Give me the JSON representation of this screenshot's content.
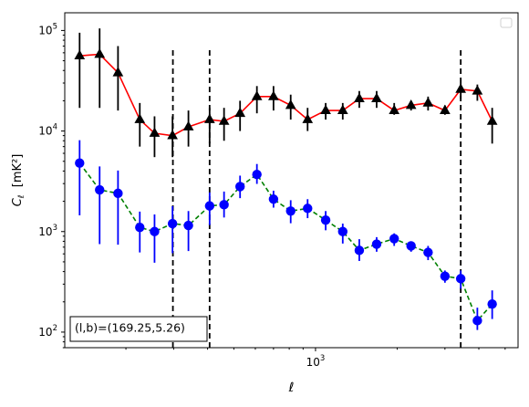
{
  "chart_data": {
    "type": "scatter",
    "title": "",
    "xlabel": "ℓ",
    "ylabel_main": "C",
    "ylabel_sub": "ℓ",
    "ylabel_unit": "[mK²]",
    "xscale": "log",
    "yscale": "log",
    "xlim": [
      119,
      5580
    ],
    "ylim": [
      70,
      150000
    ],
    "x_major_ticks": [
      {
        "value": 1000,
        "base": "10",
        "exp": "3"
      }
    ],
    "y_major_ticks": [
      {
        "value": 100,
        "base": "10",
        "exp": "2"
      },
      {
        "value": 1000,
        "base": "10",
        "exp": "3"
      },
      {
        "value": 10000,
        "base": "10",
        "exp": "4"
      },
      {
        "value": 100000,
        "base": "10",
        "exp": "5"
      }
    ],
    "grid": false,
    "legend": "top-right",
    "annotation": "(l,b)=(169.25,5.26)",
    "vlines": [
      298,
      407,
      3430
    ],
    "vline_range": [
      70,
      68000
    ],
    "series": [
      {
        "name": "",
        "marker": "triangle",
        "color": "#000000",
        "line_color": "#ff0000",
        "line_style": "solid",
        "x": [
          135,
          160,
          187,
          225,
          255,
          297,
          340,
          407,
          460,
          527,
          608,
          700,
          810,
          935,
          1090,
          1260,
          1450,
          1680,
          1950,
          2250,
          2600,
          3000,
          3430,
          3950,
          4480
        ],
        "y": [
          56000,
          58000,
          38000,
          13000,
          9500,
          9000,
          11000,
          13000,
          12500,
          15000,
          22000,
          22000,
          18000,
          13000,
          16000,
          16000,
          21000,
          21000,
          16000,
          18000,
          19000,
          16000,
          26000,
          25000,
          12500
        ],
        "y_low": [
          17000,
          17000,
          16000,
          7000,
          5500,
          5500,
          7000,
          7500,
          8000,
          10000,
          15000,
          16000,
          13000,
          10000,
          13000,
          13000,
          17000,
          17000,
          14500,
          16000,
          16000,
          14500,
          21000,
          20000,
          7500
        ],
        "y_high": [
          95000,
          105000,
          70000,
          19000,
          14000,
          14000,
          16000,
          17000,
          17000,
          20000,
          28000,
          28000,
          23000,
          17000,
          19000,
          19000,
          25000,
          25000,
          19000,
          20000,
          22000,
          18000,
          30000,
          29000,
          17000
        ]
      },
      {
        "name": "",
        "marker": "circle",
        "color": "#0000ff",
        "line_color": "#008000",
        "line_style": "dashed",
        "x": [
          135,
          160,
          187,
          225,
          255,
          297,
          340,
          407,
          460,
          527,
          608,
          700,
          810,
          935,
          1090,
          1260,
          1450,
          1680,
          1950,
          2250,
          2600,
          3000,
          3430,
          3950,
          4480
        ],
        "y": [
          4800,
          2600,
          2400,
          1100,
          1000,
          1200,
          1150,
          1800,
          1850,
          2800,
          3700,
          2100,
          1600,
          1700,
          1300,
          1000,
          650,
          750,
          850,
          720,
          620,
          360,
          340,
          130,
          190
        ],
        "y_low": [
          1450,
          750,
          740,
          620,
          490,
          610,
          640,
          1160,
          1380,
          2150,
          2980,
          1730,
          1210,
          1360,
          1030,
          760,
          510,
          630,
          720,
          630,
          520,
          310,
          270,
          105,
          135
        ],
        "y_high": [
          8100,
          4450,
          4050,
          1580,
          1480,
          1790,
          1600,
          2450,
          2500,
          3600,
          4700,
          2550,
          2050,
          2100,
          1600,
          1200,
          840,
          880,
          960,
          800,
          720,
          410,
          410,
          175,
          260
        ]
      }
    ]
  }
}
